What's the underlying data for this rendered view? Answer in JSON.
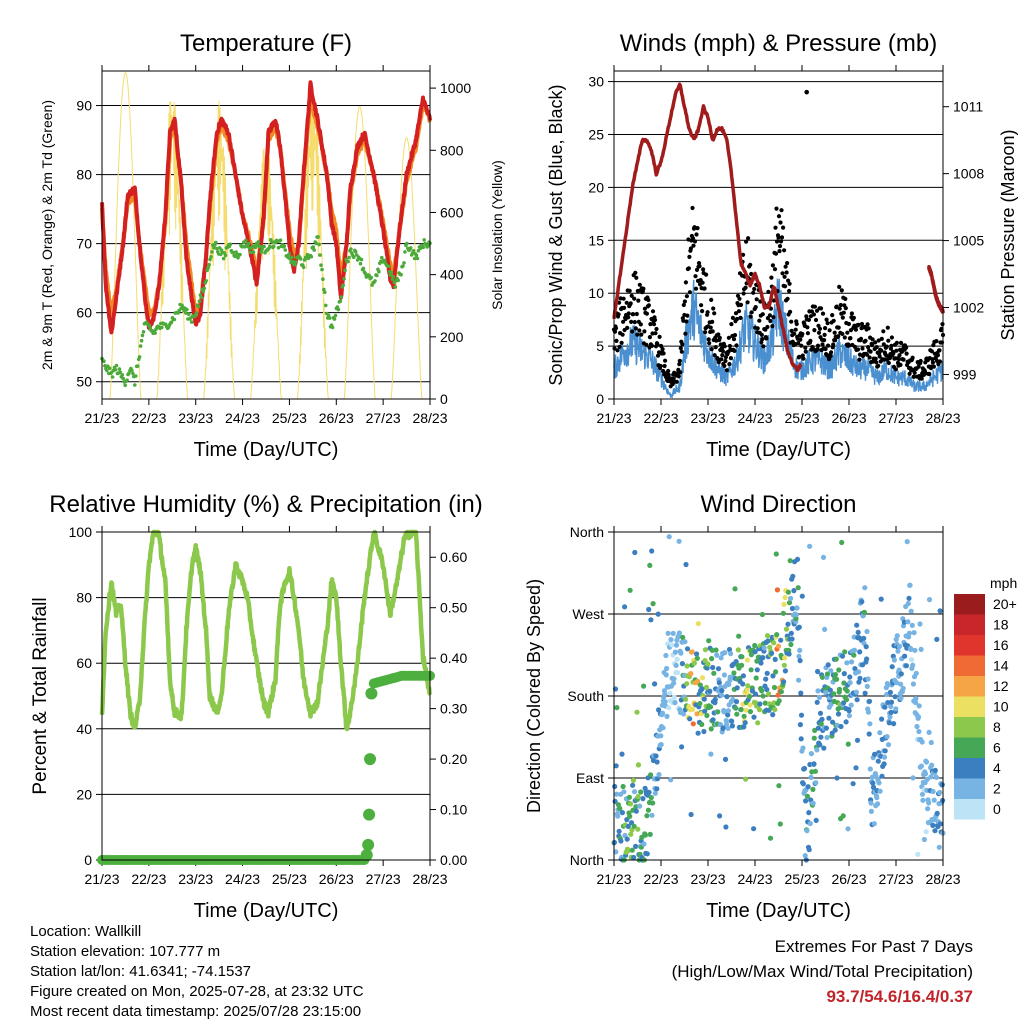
{
  "colors": {
    "temp2m": "#d42020",
    "temp9m": "#f08a24",
    "dewpoint": "#4caa3a",
    "solar": "#f5dc6e",
    "gust": "#000000",
    "wind": "#4a90d0",
    "pressure": "#a01c1c",
    "rh": "#8cc84b",
    "precip": "#4caf3e",
    "extremes": "#c0242a"
  },
  "x_tick_labels": [
    "21/23",
    "22/23",
    "23/23",
    "24/23",
    "25/23",
    "26/23",
    "27/23",
    "28/23"
  ],
  "chart_data": [
    {
      "type": "line",
      "title": "Temperature (F)",
      "xlabel": "Time (Day/UTC)",
      "ylabel": "2m & 9m T (Red, Orange) & 2m Td (Green)",
      "y2label": "Solar Insolation (Yellow)",
      "x_range_days": [
        0,
        7
      ],
      "ylim": [
        47.5,
        95
      ],
      "yticks": [
        50,
        60,
        70,
        80,
        90
      ],
      "y2lim": [
        0,
        1055
      ],
      "y2ticks": [
        0,
        200,
        400,
        600,
        800,
        1000
      ],
      "series": [
        {
          "key": "t2m",
          "x": [
            0,
            0.08,
            0.2,
            0.3,
            0.45,
            0.55,
            0.7,
            0.8,
            0.92,
            1,
            1.1,
            1.22,
            1.35,
            1.45,
            1.55,
            1.7,
            1.8,
            1.92,
            2,
            2.1,
            2.22,
            2.3,
            2.45,
            2.55,
            2.7,
            2.85,
            3,
            3.1,
            3.2,
            3.3,
            3.45,
            3.55,
            3.7,
            3.8,
            3.92,
            4.0,
            4.1,
            4.2,
            4.3,
            4.45,
            4.6,
            4.8,
            4.9,
            5.0,
            5.1,
            5.22,
            5.3,
            5.45,
            5.6,
            5.8,
            6.0,
            6.15,
            6.22,
            6.35,
            6.5,
            6.7,
            6.85,
            7.0
          ],
          "y": [
            76,
            64,
            57,
            62,
            70,
            77,
            78,
            70,
            62,
            58,
            59,
            64,
            74,
            86,
            88,
            78,
            68,
            62,
            58,
            60,
            68,
            76,
            86,
            88,
            86,
            80,
            74,
            71,
            68,
            64,
            74,
            86,
            88,
            84,
            76,
            70,
            66,
            70,
            80,
            93,
            88,
            80,
            73,
            70,
            62,
            70,
            78,
            84,
            86,
            80,
            72,
            65,
            64,
            72,
            80,
            85,
            91,
            88
          ]
        },
        {
          "key": "t9m",
          "x": [
            0,
            0.08,
            0.2,
            0.3,
            0.45,
            0.55,
            0.7,
            0.8,
            0.92,
            1,
            1.1,
            1.22,
            1.35,
            1.45,
            1.55,
            1.7,
            1.8,
            1.92,
            2,
            2.1,
            2.22,
            2.3,
            2.45,
            2.55,
            2.7,
            2.85,
            3,
            3.1,
            3.2,
            3.3,
            3.45,
            3.55,
            3.7,
            3.8,
            3.92,
            4.0,
            4.1,
            4.2,
            4.3,
            4.45,
            4.6,
            4.8,
            4.9,
            5.0,
            5.1,
            5.22,
            5.3,
            5.45,
            5.6,
            5.8,
            6.0,
            6.15,
            6.22,
            6.35,
            6.5,
            6.7,
            6.85,
            7.0
          ],
          "y": [
            75,
            66,
            60,
            63,
            70,
            76,
            77,
            70,
            64,
            60,
            60,
            64,
            73,
            85,
            87,
            78,
            70,
            64,
            60,
            61,
            68,
            75,
            85,
            87,
            85,
            80,
            74,
            72,
            69,
            66,
            73,
            85,
            87,
            84,
            77,
            72,
            68,
            70,
            79,
            91,
            87,
            80,
            75,
            72,
            65,
            70,
            77,
            83,
            85,
            80,
            73,
            67,
            65,
            72,
            79,
            84,
            90,
            88
          ]
        },
        {
          "key": "td",
          "x": [
            0,
            0.1,
            0.2,
            0.3,
            0.4,
            0.5,
            0.6,
            0.7,
            0.8,
            0.9,
            1.0,
            1.1,
            1.2,
            1.35,
            1.5,
            1.6,
            1.7,
            1.8,
            1.9,
            2.0,
            2.1,
            2.2,
            2.3,
            2.4,
            2.5,
            2.6,
            2.7,
            2.8,
            2.9,
            3.0,
            3.1,
            3.2,
            3.3,
            3.45,
            3.6,
            3.8,
            3.9,
            4.0,
            4.1,
            4.2,
            4.3,
            4.4,
            4.5,
            4.6,
            4.7,
            4.8,
            4.9,
            5.0,
            5.1,
            5.2,
            5.3,
            5.5,
            5.6,
            5.8,
            6.0,
            6.15,
            6.25,
            6.4,
            6.5,
            6.7,
            6.85,
            7.0
          ],
          "y": [
            53,
            52,
            51,
            52,
            51,
            50,
            52,
            50,
            54,
            58,
            58,
            57,
            58,
            58,
            59,
            60,
            61,
            60,
            59,
            60,
            62,
            64,
            68,
            70,
            69,
            68,
            70,
            69,
            68,
            70,
            70,
            69,
            70,
            69,
            70,
            70,
            69,
            68,
            67,
            68,
            67,
            68,
            69,
            71,
            66,
            60,
            58,
            60,
            62,
            67,
            69,
            68,
            66,
            64,
            68,
            66,
            64,
            66,
            70,
            68,
            70,
            70
          ]
        },
        {
          "key": "solar",
          "axis": "y2",
          "peaks": [
            0.5,
            1.5,
            2.5,
            3.5,
            4.5,
            5.5,
            6.5
          ],
          "peak_values": [
            1050,
            1000,
            960,
            850,
            1000,
            940,
            840
          ]
        }
      ]
    },
    {
      "type": "line",
      "title": "Winds (mph) & Pressure (mb)",
      "xlabel": "Time (Day/UTC)",
      "ylabel": "Sonic/Prop Wind & Gust (Blue, Black)",
      "y2label": "Station Pressure (Maroon)",
      "x_range_days": [
        0,
        7
      ],
      "ylim": [
        0,
        31
      ],
      "yticks": [
        0,
        5,
        10,
        15,
        20,
        25,
        30
      ],
      "y2lim": [
        997.9,
        1012.6
      ],
      "y2ticks": [
        999,
        1002,
        1005,
        1008,
        1011
      ],
      "series": [
        {
          "key": "pressure",
          "x": [
            0,
            0.1,
            0.2,
            0.3,
            0.4,
            0.5,
            0.6,
            0.7,
            0.8,
            0.9,
            1.0,
            1.1,
            1.2,
            1.3,
            1.4,
            1.5,
            1.6,
            1.7,
            1.8,
            1.9,
            2.0,
            2.1,
            2.2,
            2.3,
            2.4,
            2.5,
            2.6,
            2.7,
            2.8,
            2.9,
            3.0,
            3.1,
            3.2,
            3.3,
            3.4,
            3.5,
            3.6,
            3.7,
            3.8,
            3.9,
            4.0,
            4.1,
            4.2,
            4.3,
            4.4,
            4.5
          ],
          "y": [
            1001.5,
            1003,
            1004.5,
            1006,
            1007.5,
            1008.5,
            1009.5,
            1009.5,
            1009,
            1008,
            1008.5,
            1009.5,
            1010.5,
            1011.5,
            1012,
            1011,
            1010,
            1009.5,
            1010,
            1011,
            1010.5,
            1009.5,
            1010,
            1010,
            1009.5,
            1008,
            1006,
            1004,
            1003.5,
            1003,
            1003.5,
            1003,
            1002,
            1002,
            1003,
            1002,
            1001,
            1000,
            999.5,
            999.2,
            999.5,
            null,
            null,
            null,
            null,
            null
          ]
        },
        {
          "key": "pressure_tail",
          "x": [
            6.7,
            6.75,
            6.8,
            6.85,
            6.9,
            6.95,
            7.0
          ],
          "y": [
            1003.8,
            1003.5,
            1003,
            1002.5,
            1002.2,
            1002,
            1001.8
          ]
        },
        {
          "key": "wind_profile",
          "x": [
            0,
            0.2,
            0.4,
            0.6,
            0.8,
            1.0,
            1.2,
            1.4,
            1.5,
            1.6,
            1.7,
            1.8,
            2.0,
            2.2,
            2.4,
            2.6,
            2.7,
            2.8,
            3.0,
            3.2,
            3.4,
            3.5,
            3.6,
            3.7,
            3.8,
            3.9,
            4.0,
            4.2,
            4.4,
            4.6,
            4.8,
            5.0,
            5.2,
            5.4,
            5.6,
            5.8,
            6.0,
            6.2,
            6.4,
            6.6,
            6.8,
            7.0
          ],
          "y": [
            4,
            6,
            7,
            6,
            5,
            3,
            1,
            2,
            6,
            9,
            11,
            9,
            6,
            4,
            3,
            5,
            7,
            9,
            7,
            5,
            8,
            12,
            9,
            7,
            5,
            4,
            4,
            5,
            5,
            4,
            6,
            5,
            4,
            4,
            3,
            4,
            3,
            3,
            2,
            2,
            3,
            4
          ]
        },
        {
          "key": "gust_outlier",
          "x": [
            4.1
          ],
          "y": [
            29
          ]
        }
      ]
    },
    {
      "type": "line",
      "title": "Relative Humidity (%) & Precipitation (in)",
      "xlabel": "Time (Day/UTC)",
      "ylabel": "Percent & Total Rainfall",
      "x_range_days": [
        0,
        7
      ],
      "ylim": [
        0,
        100
      ],
      "yticks": [
        0,
        20,
        40,
        60,
        80,
        100
      ],
      "y2lim": [
        0,
        0.65
      ],
      "y2ticks": [
        "0.00",
        "0.10",
        "0.20",
        "0.30",
        "0.40",
        "0.50",
        "0.60"
      ],
      "series": [
        {
          "key": "rh",
          "x": [
            0,
            0.08,
            0.2,
            0.3,
            0.4,
            0.5,
            0.6,
            0.7,
            0.8,
            0.9,
            1.0,
            1.1,
            1.2,
            1.35,
            1.45,
            1.55,
            1.7,
            1.8,
            1.92,
            2.0,
            2.1,
            2.22,
            2.3,
            2.45,
            2.55,
            2.7,
            2.85,
            3.0,
            3.1,
            3.2,
            3.3,
            3.45,
            3.55,
            3.7,
            3.8,
            3.92,
            4.0,
            4.1,
            4.2,
            4.3,
            4.45,
            4.6,
            4.8,
            4.9,
            5.0,
            5.1,
            5.22,
            5.3,
            5.45,
            5.6,
            5.8,
            6.0,
            6.15,
            6.3,
            6.45,
            6.6,
            6.7,
            6.85,
            7.0
          ],
          "y": [
            45,
            70,
            85,
            75,
            78,
            60,
            45,
            40,
            48,
            70,
            90,
            100,
            100,
            85,
            55,
            45,
            44,
            70,
            90,
            95,
            88,
            70,
            50,
            45,
            50,
            75,
            90,
            85,
            80,
            70,
            60,
            48,
            45,
            55,
            78,
            85,
            88,
            80,
            70,
            55,
            45,
            48,
            70,
            85,
            80,
            60,
            40,
            45,
            60,
            80,
            100,
            90,
            75,
            85,
            98,
            100,
            100,
            62,
            50
          ]
        },
        {
          "key": "precip",
          "axis": "y2",
          "x": [
            0,
            1,
            2,
            3,
            4,
            5,
            5.6,
            5.65,
            5.68,
            5.7,
            5.72,
            5.75,
            5.8,
            6.0,
            6.2,
            6.4,
            6.6,
            6.8,
            7.0
          ],
          "y": [
            0,
            0,
            0,
            0,
            0,
            0,
            0,
            0.01,
            0.03,
            0.09,
            0.2,
            0.33,
            0.35,
            0.355,
            0.36,
            0.365,
            0.365,
            0.365,
            0.365
          ]
        }
      ]
    },
    {
      "type": "scatter",
      "title": "Wind Direction",
      "xlabel": "Time (Day/UTC)",
      "ylabel": "Direction (Colored By Speed)",
      "x_range_days": [
        0,
        7
      ],
      "ylim": [
        0,
        360
      ],
      "yticks": [
        0,
        90,
        180,
        270,
        360
      ],
      "ytick_labels": [
        "North",
        "East",
        "South",
        "West",
        "North"
      ],
      "direction_profile": {
        "x": [
          0,
          0.3,
          0.6,
          0.8,
          1.0,
          1.2,
          1.5,
          1.8,
          2.0,
          2.3,
          2.6,
          2.9,
          3.2,
          3.5,
          3.8,
          3.9,
          4.0,
          4.1,
          4.2,
          4.35,
          4.5,
          4.8,
          5.1,
          5.3,
          5.5,
          5.8,
          6.0,
          6.3,
          6.6,
          6.8,
          7.0
        ],
        "y": [
          30,
          50,
          30,
          60,
          160,
          220,
          200,
          180,
          190,
          185,
          190,
          190,
          200,
          210,
          290,
          300,
          100,
          20,
          80,
          150,
          170,
          180,
          210,
          260,
          70,
          160,
          200,
          260,
          80,
          60,
          40
        ]
      },
      "colorbar": {
        "title": "mph",
        "labels": [
          "20+",
          "18",
          "16",
          "14",
          "12",
          "10",
          "8",
          "6",
          "4",
          "2",
          "0"
        ],
        "colors": [
          "#9b1c1c",
          "#c8262a",
          "#e0352c",
          "#f06a34",
          "#f5a545",
          "#ece063",
          "#8cc84b",
          "#46a857",
          "#3b7fc0",
          "#78b4e3",
          "#bde3f6"
        ]
      }
    }
  ],
  "info": {
    "location": "Location: Wallkill",
    "elevation": "Station elevation: 107.777 m",
    "latlon": "Station lat/lon: 41.6341; -74.1537",
    "created": "Figure created on Mon, 2025-07-28, at 23:32 UTC",
    "recent": "Most recent data timestamp: 2025/07/28 23:15:00"
  },
  "extremes": {
    "title": "Extremes For Past 7 Days",
    "subtitle": "(High/Low/Max Wind/Total Precipitation)",
    "values": "93.7/54.6/16.4/0.37"
  }
}
